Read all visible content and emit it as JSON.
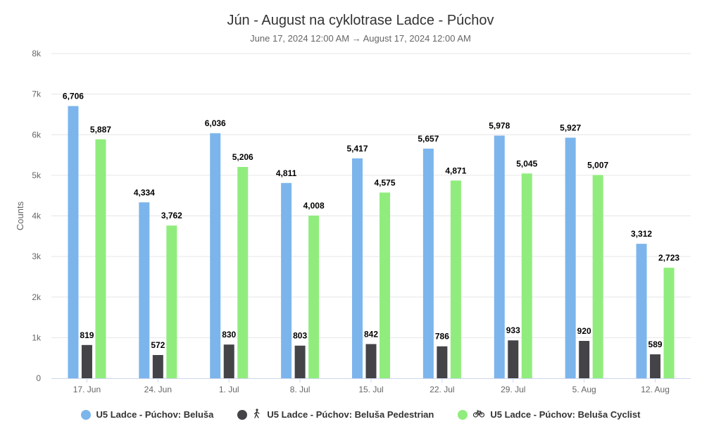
{
  "chart_data": {
    "type": "bar",
    "title": "Jún - August na cyklotrase Ladce - Púchov",
    "subtitle": "June 17, 2024 12:00 AM → August 17, 2024 12:00 AM",
    "ylabel": "Counts",
    "ylim": [
      0,
      8000
    ],
    "yticks": [
      {
        "value": 0,
        "label": "0"
      },
      {
        "value": 1000,
        "label": "1k"
      },
      {
        "value": 2000,
        "label": "2k"
      },
      {
        "value": 3000,
        "label": "3k"
      },
      {
        "value": 4000,
        "label": "4k"
      },
      {
        "value": 5000,
        "label": "5k"
      },
      {
        "value": 6000,
        "label": "6k"
      },
      {
        "value": 7000,
        "label": "7k"
      },
      {
        "value": 8000,
        "label": "8k"
      }
    ],
    "grid": true,
    "legend_position": "bottom",
    "categories": [
      "17. Jun",
      "24. Jun",
      "1. Jul",
      "8. Jul",
      "15. Jul",
      "22. Jul",
      "29. Jul",
      "5. Aug",
      "12. Aug"
    ],
    "series": [
      {
        "name": "U5 Ladce - Púchov: Beluša",
        "color": "#7cb5ec",
        "icon": "",
        "values": [
          6706,
          4334,
          6036,
          4811,
          5417,
          5657,
          5978,
          5927,
          3312
        ],
        "labels": [
          "6,706",
          "4,334",
          "6,036",
          "4,811",
          "5,417",
          "5,657",
          "5,978",
          "5,927",
          "3,312"
        ]
      },
      {
        "name": "U5 Ladce - Púchov: Beluša Pedestrian",
        "color": "#434348",
        "icon": "pedestrian-icon",
        "values": [
          819,
          572,
          830,
          803,
          842,
          786,
          933,
          920,
          589
        ],
        "labels": [
          "819",
          "572",
          "830",
          "803",
          "842",
          "786",
          "933",
          "920",
          "589"
        ]
      },
      {
        "name": "U5 Ladce - Púchov: Beluša Cyclist",
        "color": "#90ed7d",
        "icon": "bicycle-icon",
        "values": [
          5887,
          3762,
          5206,
          4008,
          4575,
          4871,
          5045,
          5007,
          2723
        ],
        "labels": [
          "5,887",
          "3,762",
          "5,206",
          "4,008",
          "4,575",
          "4,871",
          "5,045",
          "5,007",
          "2,723"
        ]
      }
    ]
  }
}
